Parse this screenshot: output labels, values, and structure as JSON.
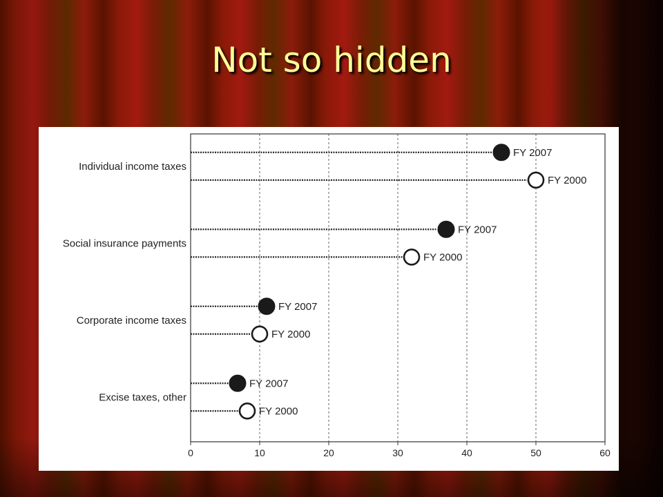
{
  "slide": {
    "title": "Not so hidden"
  },
  "chart_data": {
    "type": "scatter",
    "title": "",
    "xlabel": "",
    "ylabel": "",
    "xlim": [
      0,
      60
    ],
    "xticks": [
      0,
      10,
      20,
      30,
      40,
      50,
      60
    ],
    "grid": true,
    "categories": [
      "Individual income taxes",
      "Social insurance payments",
      "Corporate income taxes",
      "Excise taxes, other"
    ],
    "series": [
      {
        "name": "FY 2007",
        "marker": "filled",
        "color": "#1a1a1a",
        "values": [
          45,
          37,
          11,
          6.8
        ]
      },
      {
        "name": "FY 2000",
        "marker": "open",
        "color": "#1a1a1a",
        "values": [
          50,
          32,
          10,
          8.2
        ]
      }
    ]
  }
}
